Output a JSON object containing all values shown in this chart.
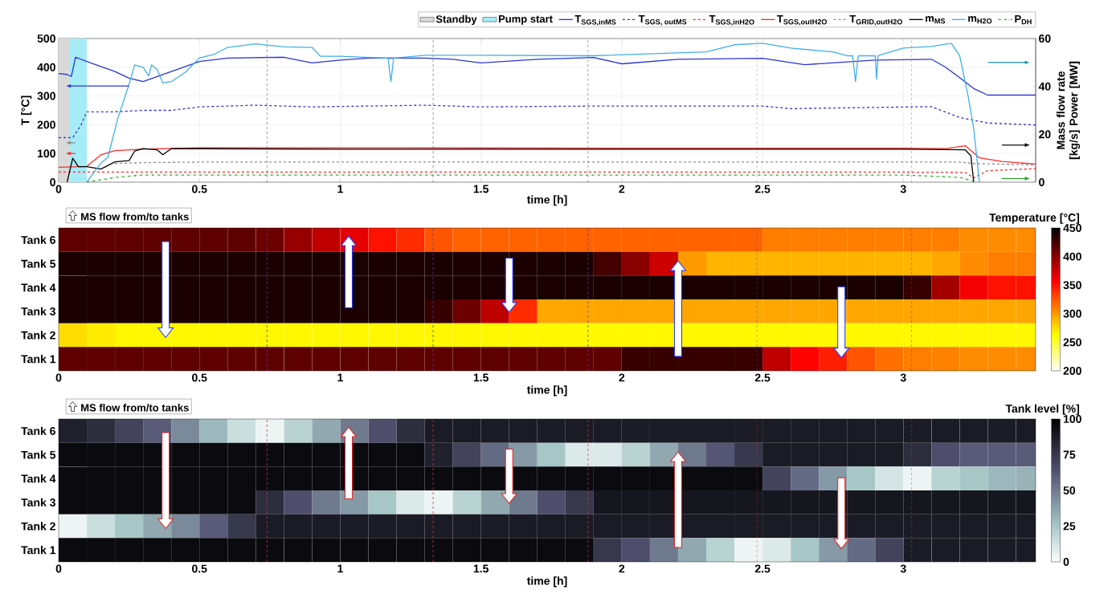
{
  "chart_data": [
    {
      "type": "line",
      "xlabel": "time [h]",
      "ylabel": "T [°C]",
      "y2label": "Mass flow rate [kg/s] Power [MW]",
      "xlim": [
        0,
        3.47
      ],
      "ylim": [
        0,
        500
      ],
      "y2lim": [
        0,
        60
      ],
      "xticks": [
        0,
        0.5,
        1,
        1.5,
        2,
        2.5,
        3
      ],
      "yticks": [
        0,
        100,
        200,
        300,
        400,
        500
      ],
      "y2ticks": [
        0,
        20,
        40,
        60
      ],
      "grid": true,
      "legend": "top",
      "bands": [
        {
          "axis": "x",
          "from": 0,
          "to": 0.037,
          "label": "Standby",
          "color": "#d9d9d9"
        },
        {
          "axis": "x",
          "from": 0.037,
          "to": 0.1,
          "label": "Pump start",
          "color": "#a6ecf7"
        }
      ],
      "ref_lines": [
        {
          "axis": "x",
          "value": 0.74,
          "color": "#808080",
          "line_style": "dashed"
        },
        {
          "axis": "x",
          "value": 1.33,
          "color": "#808080",
          "line_style": "dashed"
        },
        {
          "axis": "x",
          "value": 1.88,
          "color": "#808080",
          "line_style": "dashed"
        },
        {
          "axis": "x",
          "value": 2.48,
          "color": "#808080",
          "line_style": "dashed"
        },
        {
          "axis": "x",
          "value": 3.03,
          "color": "#808080",
          "line_style": "dashed"
        }
      ],
      "series": [
        {
          "name": "\\mathbf{T}_{\\text{SGS,inMS}}",
          "color": "#2b35d6",
          "line_style": "solid",
          "x": [
            0,
            0.03,
            0.045,
            0.06,
            0.1,
            0.2,
            0.25,
            0.3,
            0.4,
            0.5,
            0.6,
            0.8,
            0.9,
            1.0,
            1.1,
            1.3,
            1.4,
            1.5,
            1.7,
            1.9,
            2.0,
            2.2,
            2.5,
            2.65,
            2.9,
            3.1,
            3.15,
            3.2,
            3.25,
            3.3,
            3.47
          ],
          "values": [
            378,
            375,
            368,
            435,
            420,
            385,
            362,
            350,
            385,
            420,
            432,
            435,
            415,
            425,
            432,
            432,
            428,
            415,
            428,
            434,
            412,
            428,
            431,
            409,
            425,
            428,
            400,
            364,
            326,
            303,
            303
          ]
        },
        {
          "name": "\\mathbf{T}_{\\text{SGS, outMS}}",
          "color": "#2b35d6",
          "line_style": "dashed",
          "x": [
            0,
            0.05,
            0.08,
            0.1,
            0.2,
            0.3,
            0.4,
            0.5,
            0.7,
            0.9,
            1.3,
            1.5,
            1.9,
            2.5,
            2.6,
            3.1,
            3.2,
            3.3,
            3.47
          ],
          "values": [
            155,
            155,
            200,
            245,
            245,
            250,
            250,
            262,
            268,
            262,
            268,
            262,
            265,
            265,
            256,
            263,
            225,
            206,
            199
          ]
        },
        {
          "name": "\\mathbf{T}_{\\text{SGS,inH2O}}",
          "color": "#ff2a2a",
          "line_style": "dashed",
          "x": [
            0,
            0.5,
            1,
            2,
            3,
            3.22,
            3.25,
            3.3,
            3.47
          ],
          "values": [
            35,
            35,
            35,
            35,
            35,
            34,
            15,
            40,
            47
          ]
        },
        {
          "name": "\\mathbf{T}_{\\text{SGS,outH2O}}",
          "color": "#ff2a2a",
          "line_style": "solid",
          "x": [
            0,
            0.1,
            0.15,
            0.2,
            0.3,
            0.5,
            1,
            2,
            3,
            3.15,
            3.22,
            3.27,
            3.35,
            3.47
          ],
          "values": [
            52,
            55,
            95,
            110,
            115,
            120,
            120,
            118,
            118,
            117,
            127,
            85,
            72,
            63
          ]
        },
        {
          "name": "\\mathbf{T}_{\\text{GRID,outH2O}}",
          "color": "#8c8c8c",
          "line_style": "dashed",
          "x": [
            0.2,
            0.3,
            0.5,
            1,
            2,
            3,
            3.2,
            3.25,
            3.47
          ],
          "values": [
            65,
            68,
            70,
            70,
            70,
            70,
            70,
            65,
            60
          ]
        },
        {
          "name": "\\mathbf{m}_{\\text{MS}}",
          "color": "#000000",
          "line_style": "solid",
          "axis": "y2",
          "x": [
            0.03,
            0.05,
            0.07,
            0.1,
            0.15,
            0.2,
            0.25,
            0.27,
            0.3,
            0.35,
            0.37,
            0.4,
            0.5,
            1,
            2,
            3,
            3.22,
            3.24,
            3.25
          ],
          "values": [
            0,
            10,
            6.5,
            6.5,
            5.5,
            8.5,
            9,
            13,
            14,
            13.5,
            11.5,
            14,
            14,
            13.8,
            13.8,
            13.8,
            13.5,
            11,
            0
          ]
        },
        {
          "name": "\\mathbf{m}_{\\text{H2O}}",
          "color": "#3fb0e8",
          "line_style": "solid",
          "axis": "y2",
          "x": [
            0.1,
            0.15,
            0.175,
            0.21,
            0.25,
            0.27,
            0.3,
            0.32,
            0.33,
            0.35,
            0.37,
            0.4,
            0.45,
            0.5,
            0.55,
            0.6,
            0.65,
            0.7,
            0.8,
            0.9,
            0.93,
            1.0,
            1.17,
            1.18,
            1.19,
            1.3,
            1.5,
            1.9,
            2.3,
            2.4,
            2.5,
            2.6,
            2.75,
            2.8,
            2.82,
            2.83,
            2.84,
            2.9,
            2.905,
            2.91,
            3.0,
            3.1,
            3.17,
            3.2,
            3.23,
            3.25,
            3.27
          ],
          "values": [
            0,
            8,
            10.4,
            26.7,
            40.8,
            49,
            48,
            44.4,
            49,
            47,
            41.5,
            42,
            45.9,
            51.9,
            53.3,
            56.3,
            57,
            57.8,
            56.5,
            56.3,
            52.6,
            52.6,
            51.8,
            42,
            51.8,
            53,
            53,
            52.8,
            54.4,
            57.4,
            58,
            56,
            54.4,
            52.8,
            52.8,
            42,
            52.8,
            52.8,
            43,
            52.8,
            56,
            56.7,
            58,
            52.8,
            36,
            22.4,
            0
          ]
        },
        {
          "name": "\\mathbf{P}_{\\text{DH}}",
          "color": "#2a9d2a",
          "line_style": "dashdot",
          "axis": "y2",
          "x": [
            0.1,
            0.2,
            0.3,
            1,
            2,
            3,
            3.2,
            3.25
          ],
          "values": [
            0,
            2,
            3,
            3,
            3,
            3,
            2,
            0.5
          ]
        }
      ]
    },
    {
      "type": "heatmap",
      "xlabel": "time [h]",
      "clabel": "Temperature [°C]",
      "annotations": [
        "MS flow from/to tanks"
      ],
      "xlim": [
        0,
        3.47
      ],
      "xticks": [
        0,
        0.5,
        1,
        1.5,
        2,
        2.5,
        3
      ],
      "x": [
        0.05,
        0.15,
        0.25,
        0.35,
        0.45,
        0.55,
        0.65,
        0.75,
        0.85,
        0.95,
        1.05,
        1.15,
        1.25,
        1.35,
        1.45,
        1.55,
        1.65,
        1.75,
        1.85,
        1.95,
        2.05,
        2.15,
        2.25,
        2.35,
        2.45,
        2.55,
        2.65,
        2.75,
        2.85,
        2.95,
        3.05,
        3.15,
        3.25,
        3.35,
        3.45
      ],
      "y_categories": [
        "Tank 6",
        "Tank 5",
        "Tank 4",
        "Tank 3",
        "Tank 2",
        "Tank 1"
      ],
      "clim": [
        200,
        450
      ],
      "cticks": [
        200,
        250,
        300,
        350,
        400,
        450
      ],
      "ref_lines": [
        {
          "axis": "x",
          "value": 0.74,
          "color": "#3344cc",
          "line_style": "dashed"
        },
        {
          "axis": "x",
          "value": 1.33,
          "color": "#3344cc",
          "line_style": "dashed"
        },
        {
          "axis": "x",
          "value": 1.88,
          "color": "#3344cc",
          "line_style": "dashed"
        },
        {
          "axis": "x",
          "value": 2.48,
          "color": "#3344cc",
          "line_style": "dashed"
        },
        {
          "axis": "x",
          "value": 3.03,
          "color": "#3344cc",
          "line_style": "dashed"
        }
      ],
      "cells": [
        [
          415,
          415,
          415,
          415,
          415,
          415,
          415,
          410,
          395,
          380,
          365,
          350,
          340,
          325,
          320,
          320,
          320,
          320,
          320,
          320,
          320,
          320,
          320,
          320,
          320,
          310,
          310,
          310,
          310,
          310,
          310,
          310,
          305,
          305,
          305
        ],
        [
          440,
          440,
          440,
          440,
          440,
          440,
          440,
          440,
          440,
          440,
          440,
          440,
          440,
          440,
          440,
          440,
          440,
          440,
          440,
          425,
          400,
          375,
          300,
          290,
          290,
          290,
          290,
          290,
          290,
          290,
          290,
          295,
          305,
          310,
          310
        ],
        [
          440,
          440,
          440,
          440,
          440,
          440,
          440,
          440,
          440,
          440,
          440,
          440,
          440,
          440,
          440,
          440,
          440,
          440,
          440,
          440,
          440,
          440,
          440,
          440,
          440,
          440,
          440,
          440,
          440,
          440,
          430,
          390,
          360,
          350,
          350
        ],
        [
          440,
          440,
          440,
          440,
          440,
          440,
          440,
          440,
          440,
          440,
          440,
          440,
          440,
          430,
          410,
          380,
          340,
          295,
          295,
          295,
          295,
          295,
          295,
          295,
          295,
          295,
          295,
          295,
          295,
          295,
          295,
          295,
          295,
          295,
          295
        ],
        [
          275,
          270,
          265,
          265,
          265,
          265,
          265,
          265,
          265,
          265,
          265,
          265,
          265,
          265,
          265,
          265,
          265,
          265,
          265,
          265,
          265,
          265,
          265,
          265,
          265,
          265,
          265,
          265,
          265,
          265,
          265,
          265,
          265,
          265,
          265
        ],
        [
          415,
          415,
          415,
          415,
          415,
          415,
          415,
          415,
          415,
          415,
          415,
          415,
          415,
          415,
          415,
          415,
          415,
          415,
          415,
          415,
          430,
          430,
          430,
          430,
          430,
          380,
          355,
          345,
          325,
          315,
          310,
          308,
          305,
          305,
          305
        ]
      ]
    },
    {
      "type": "heatmap",
      "xlabel": "time [h]",
      "clabel": "Tank level [%]",
      "annotations": [
        "MS flow from/to tanks"
      ],
      "xlim": [
        0,
        3.47
      ],
      "xticks": [
        0,
        0.5,
        1,
        1.5,
        2,
        2.5,
        3
      ],
      "x": [
        0.05,
        0.15,
        0.25,
        0.35,
        0.45,
        0.55,
        0.65,
        0.75,
        0.85,
        0.95,
        1.05,
        1.15,
        1.25,
        1.35,
        1.45,
        1.55,
        1.65,
        1.75,
        1.85,
        1.95,
        2.05,
        2.15,
        2.25,
        2.35,
        2.45,
        2.55,
        2.65,
        2.75,
        2.85,
        2.95,
        3.05,
        3.15,
        3.25,
        3.35,
        3.45
      ],
      "y_categories": [
        "Tank 6",
        "Tank 5",
        "Tank 4",
        "Tank 3",
        "Tank 2",
        "Tank 1"
      ],
      "clim": [
        0,
        100
      ],
      "cticks": [
        0,
        25,
        50,
        75,
        100
      ],
      "ref_lines": [
        {
          "axis": "x",
          "value": 0.74,
          "color": "#e03030",
          "line_style": "dashed"
        },
        {
          "axis": "x",
          "value": 1.33,
          "color": "#e03030",
          "line_style": "dashed"
        },
        {
          "axis": "x",
          "value": 1.88,
          "color": "#e03030",
          "line_style": "dashed"
        },
        {
          "axis": "x",
          "value": 2.48,
          "color": "#e03030",
          "line_style": "dashed"
        },
        {
          "axis": "x",
          "value": 3.03,
          "color": "#e03030",
          "line_style": "dashed"
        }
      ],
      "cells": [
        [
          85,
          80,
          70,
          60,
          45,
          30,
          15,
          5,
          20,
          35,
          50,
          65,
          80,
          88,
          88,
          88,
          88,
          88,
          88,
          88,
          88,
          88,
          88,
          88,
          88,
          88,
          88,
          88,
          88,
          88,
          88,
          88,
          88,
          88,
          88
        ],
        [
          95,
          95,
          95,
          95,
          95,
          95,
          95,
          95,
          95,
          95,
          95,
          95,
          95,
          85,
          70,
          55,
          40,
          25,
          10,
          10,
          20,
          35,
          50,
          62,
          75,
          88,
          88,
          88,
          88,
          88,
          80,
          65,
          60,
          60,
          60
        ],
        [
          95,
          95,
          95,
          95,
          95,
          95,
          95,
          95,
          95,
          95,
          95,
          95,
          95,
          95,
          95,
          95,
          95,
          95,
          95,
          95,
          95,
          95,
          95,
          95,
          95,
          70,
          55,
          40,
          25,
          12,
          5,
          20,
          25,
          30,
          32
        ],
        [
          95,
          95,
          95,
          95,
          95,
          95,
          95,
          80,
          65,
          50,
          40,
          25,
          10,
          5,
          20,
          35,
          50,
          65,
          75,
          90,
          90,
          90,
          90,
          90,
          90,
          90,
          90,
          90,
          90,
          90,
          90,
          90,
          90,
          90,
          90
        ],
        [
          5,
          15,
          25,
          35,
          45,
          60,
          75,
          88,
          88,
          88,
          88,
          88,
          88,
          88,
          88,
          88,
          88,
          88,
          88,
          88,
          88,
          88,
          88,
          88,
          88,
          88,
          88,
          88,
          88,
          88,
          88,
          88,
          88,
          88,
          88
        ],
        [
          95,
          95,
          95,
          95,
          95,
          95,
          95,
          95,
          95,
          95,
          95,
          95,
          95,
          95,
          95,
          95,
          95,
          95,
          95,
          75,
          65,
          50,
          35,
          20,
          5,
          10,
          25,
          40,
          55,
          70,
          88,
          88,
          88,
          88,
          88
        ]
      ]
    }
  ]
}
